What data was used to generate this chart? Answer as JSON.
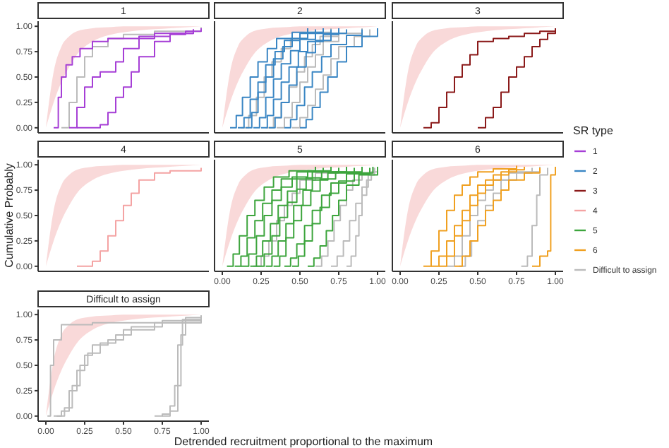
{
  "chart_data": [
    {
      "type": "step",
      "title": "1",
      "xlim": [
        -0.05,
        1.05
      ],
      "ylim": [
        -0.05,
        1.05
      ],
      "yticks": [
        {
          "value": 0,
          "label": "0.00"
        },
        {
          "value": 0.25,
          "label": "0.25"
        },
        {
          "value": 0.5,
          "label": "0.50"
        },
        {
          "value": 0.75,
          "label": "0.75"
        },
        {
          "value": 1,
          "label": "1.00"
        }
      ],
      "tick_labels": "y",
      "grid": false,
      "series": [
        {
          "type": "area",
          "color": "#f8d0d0",
          "x": [
            0,
            0.05,
            0.1,
            0.15,
            0.2,
            0.3,
            0.4,
            0.5,
            0.6,
            0.8,
            1.0
          ],
          "values": [
            null,
            null,
            null,
            null,
            null,
            null,
            null,
            null,
            null,
            null,
            null
          ],
          "lower": [
            0,
            0.25,
            0.45,
            0.6,
            0.72,
            0.85,
            0.91,
            0.94,
            0.96,
            0.98,
            1.0
          ],
          "upper": [
            0,
            0.55,
            0.8,
            0.9,
            0.95,
            0.98,
            0.99,
            1.0,
            1.0,
            1.0,
            1.0
          ]
        },
        {
          "color": "#bbbbbb",
          "x": [
            0.1,
            0.15,
            0.2,
            0.25,
            0.3,
            0.4,
            0.5,
            0.7,
            1.0
          ],
          "values": [
            0,
            0.25,
            0.5,
            0.7,
            0.8,
            0.88,
            0.92,
            0.95,
            0.99
          ]
        },
        {
          "name": "1",
          "color": "#a63fd6",
          "x": [
            0.05,
            0.08,
            0.1,
            0.13,
            0.17,
            0.22,
            0.3,
            0.4,
            0.6,
            0.8,
            0.95
          ],
          "values": [
            0,
            0.3,
            0.5,
            0.62,
            0.7,
            0.78,
            0.85,
            0.88,
            0.9,
            0.93,
            0.97
          ]
        },
        {
          "color": "#a63fd6",
          "x": [
            0.15,
            0.2,
            0.25,
            0.3,
            0.35,
            0.45,
            0.5,
            0.6,
            0.7,
            0.95
          ],
          "values": [
            0,
            0.2,
            0.4,
            0.5,
            0.55,
            0.65,
            0.78,
            0.88,
            0.93,
            0.97
          ]
        },
        {
          "color": "#a63fd6",
          "x": [
            0.2,
            0.35,
            0.4,
            0.45,
            0.5,
            0.55,
            0.6,
            0.7,
            0.8,
            0.9,
            1.0
          ],
          "values": [
            0,
            0.03,
            0.15,
            0.3,
            0.4,
            0.55,
            0.7,
            0.85,
            0.92,
            0.95,
            0.98
          ]
        }
      ]
    },
    {
      "type": "step",
      "title": "2",
      "xlim": [
        -0.05,
        1.05
      ],
      "ylim": [
        -0.05,
        1.05
      ],
      "tick_labels": false,
      "grid": false,
      "series": [
        {
          "type": "area",
          "color": "#f8d0d0",
          "x": [
            0,
            0.05,
            0.1,
            0.15,
            0.2,
            0.3,
            0.4,
            0.5,
            0.6,
            0.8,
            1.0
          ],
          "values": [
            null,
            null,
            null,
            null,
            null,
            null,
            null,
            null,
            null,
            null,
            null
          ],
          "lower": [
            0,
            0.25,
            0.45,
            0.6,
            0.72,
            0.85,
            0.91,
            0.94,
            0.96,
            0.98,
            1.0
          ],
          "upper": [
            0,
            0.55,
            0.8,
            0.9,
            0.95,
            0.98,
            0.99,
            1.0,
            1.0,
            1.0,
            1.0
          ]
        },
        {
          "color": "#bbbbbb",
          "x": [
            0.12,
            0.17,
            0.22,
            0.27,
            0.32,
            0.38,
            0.44,
            0.55,
            0.7
          ],
          "values": [
            0,
            0.12,
            0.3,
            0.5,
            0.65,
            0.78,
            0.88,
            0.94,
            0.98
          ]
        },
        {
          "color": "#bbbbbb",
          "x": [
            0.28,
            0.33,
            0.38,
            0.43,
            0.48,
            0.53,
            0.58,
            0.63,
            0.75
          ],
          "values": [
            0,
            0.1,
            0.25,
            0.4,
            0.55,
            0.7,
            0.82,
            0.9,
            0.96
          ]
        },
        {
          "color": "#bbbbbb",
          "x": [
            0.35,
            0.4,
            0.45,
            0.5,
            0.55,
            0.6,
            0.65,
            0.75,
            0.9
          ],
          "values": [
            0,
            0.1,
            0.25,
            0.45,
            0.6,
            0.72,
            0.85,
            0.93,
            0.98
          ]
        },
        {
          "color": "#bbbbbb",
          "x": [
            0.45,
            0.5,
            0.55,
            0.6,
            0.65,
            0.7,
            0.75,
            0.85,
            0.95
          ],
          "values": [
            0,
            0.1,
            0.22,
            0.38,
            0.52,
            0.68,
            0.8,
            0.9,
            0.97
          ]
        },
        {
          "name": "2",
          "color": "#3a86c4",
          "x": [
            0.05,
            0.09,
            0.13,
            0.18,
            0.23,
            0.29,
            0.35,
            0.45,
            0.55
          ],
          "values": [
            0,
            0.12,
            0.3,
            0.5,
            0.65,
            0.78,
            0.88,
            0.94,
            0.98
          ]
        },
        {
          "color": "#3a86c4",
          "x": [
            0.1,
            0.14,
            0.18,
            0.23,
            0.28,
            0.34,
            0.4,
            0.5,
            0.6
          ],
          "values": [
            0,
            0.1,
            0.28,
            0.45,
            0.62,
            0.75,
            0.86,
            0.93,
            0.97
          ]
        },
        {
          "color": "#3a86c4",
          "x": [
            0.15,
            0.19,
            0.23,
            0.28,
            0.33,
            0.39,
            0.45,
            0.55,
            0.65
          ],
          "values": [
            0,
            0.15,
            0.35,
            0.5,
            0.68,
            0.8,
            0.88,
            0.94,
            0.98
          ]
        },
        {
          "color": "#3a86c4",
          "x": [
            0.2,
            0.24,
            0.28,
            0.33,
            0.38,
            0.44,
            0.5,
            0.6,
            0.7
          ],
          "values": [
            0,
            0.1,
            0.3,
            0.48,
            0.63,
            0.76,
            0.87,
            0.93,
            0.97
          ]
        },
        {
          "color": "#3a86c4",
          "x": [
            0.25,
            0.29,
            0.33,
            0.38,
            0.43,
            0.49,
            0.55,
            0.65,
            0.75
          ],
          "values": [
            0,
            0.12,
            0.28,
            0.45,
            0.6,
            0.75,
            0.85,
            0.92,
            0.98
          ]
        },
        {
          "color": "#3a86c4",
          "x": [
            0.3,
            0.34,
            0.38,
            0.43,
            0.48,
            0.54,
            0.6,
            0.7,
            0.8
          ],
          "values": [
            0,
            0.1,
            0.25,
            0.42,
            0.6,
            0.74,
            0.86,
            0.93,
            0.97
          ]
        },
        {
          "color": "#3a86c4",
          "x": [
            0.4,
            0.44,
            0.48,
            0.53,
            0.58,
            0.64,
            0.7,
            0.8,
            0.9
          ],
          "values": [
            0,
            0.08,
            0.22,
            0.4,
            0.55,
            0.7,
            0.82,
            0.91,
            0.97
          ]
        },
        {
          "color": "#3a86c4",
          "x": [
            0.5,
            0.54,
            0.58,
            0.63,
            0.68,
            0.74,
            0.8,
            0.9,
            1.0
          ],
          "values": [
            0,
            0.08,
            0.2,
            0.35,
            0.5,
            0.65,
            0.8,
            0.9,
            0.98
          ]
        }
      ]
    },
    {
      "type": "step",
      "title": "3",
      "xlim": [
        -0.05,
        1.05
      ],
      "ylim": [
        -0.05,
        1.05
      ],
      "tick_labels": false,
      "grid": false,
      "legend": "right",
      "legend_title": "SR type",
      "series": [
        {
          "type": "area",
          "color": "#f8d0d0",
          "x": [
            0,
            0.05,
            0.1,
            0.15,
            0.2,
            0.3,
            0.4,
            0.5,
            0.6,
            0.8,
            1.0
          ],
          "values": [
            null,
            null,
            null,
            null,
            null,
            null,
            null,
            null,
            null,
            null,
            null
          ],
          "lower": [
            0,
            0.25,
            0.45,
            0.6,
            0.72,
            0.85,
            0.91,
            0.94,
            0.96,
            0.98,
            1.0
          ],
          "upper": [
            0,
            0.55,
            0.8,
            0.9,
            0.95,
            0.98,
            0.99,
            1.0,
            1.0,
            1.0,
            1.0
          ]
        },
        {
          "name": "3",
          "color": "#8b1a1a",
          "x": [
            0.15,
            0.2,
            0.25,
            0.3,
            0.35,
            0.4,
            0.45,
            0.5,
            0.6,
            0.7,
            0.8,
            0.9,
            1.0
          ],
          "values": [
            0,
            0.05,
            0.2,
            0.35,
            0.5,
            0.62,
            0.72,
            0.85,
            0.88,
            0.9,
            0.93,
            0.95,
            0.98
          ]
        },
        {
          "color": "#8b1a1a",
          "x": [
            0.5,
            0.55,
            0.6,
            0.65,
            0.7,
            0.75,
            0.8,
            0.85,
            0.9,
            0.95,
            1.0
          ],
          "values": [
            0,
            0.1,
            0.2,
            0.35,
            0.5,
            0.6,
            0.7,
            0.8,
            0.87,
            0.93,
            0.98
          ]
        }
      ]
    },
    {
      "type": "step",
      "title": "4",
      "ylabel": "Cumulative Probably",
      "xlim": [
        -0.05,
        1.05
      ],
      "ylim": [
        -0.05,
        1.05
      ],
      "yticks": [
        {
          "value": 0,
          "label": "0.00"
        },
        {
          "value": 0.25,
          "label": "0.25"
        },
        {
          "value": 0.5,
          "label": "0.50"
        },
        {
          "value": 0.75,
          "label": "0.75"
        },
        {
          "value": 1,
          "label": "1.00"
        }
      ],
      "tick_labels": "y",
      "grid": false,
      "series": [
        {
          "type": "area",
          "color": "#f8d0d0",
          "x": [
            0,
            0.05,
            0.1,
            0.15,
            0.2,
            0.3,
            0.4,
            0.5,
            0.6,
            0.8,
            1.0
          ],
          "values": [
            null,
            null,
            null,
            null,
            null,
            null,
            null,
            null,
            null,
            null,
            null
          ],
          "lower": [
            0,
            0.25,
            0.45,
            0.6,
            0.72,
            0.85,
            0.91,
            0.94,
            0.96,
            0.98,
            1.0
          ],
          "upper": [
            0,
            0.55,
            0.8,
            0.9,
            0.95,
            0.98,
            0.99,
            1.0,
            1.0,
            1.0,
            1.0
          ]
        },
        {
          "name": "4",
          "color": "#f4a3a3",
          "x": [
            0.2,
            0.3,
            0.35,
            0.4,
            0.45,
            0.5,
            0.55,
            0.6,
            0.7,
            0.8,
            1.0
          ],
          "values": [
            0,
            0.05,
            0.15,
            0.3,
            0.45,
            0.6,
            0.72,
            0.85,
            0.92,
            0.94,
            0.97
          ]
        }
      ]
    },
    {
      "type": "step",
      "title": "5",
      "xlim": [
        -0.05,
        1.05
      ],
      "ylim": [
        -0.05,
        1.05
      ],
      "xticks": [
        {
          "value": 0,
          "label": "0.00"
        },
        {
          "value": 0.25,
          "label": "0.25"
        },
        {
          "value": 0.5,
          "label": "0.50"
        },
        {
          "value": 0.75,
          "label": "0.75"
        },
        {
          "value": 1,
          "label": "1.00"
        }
      ],
      "tick_labels": "x",
      "grid": false,
      "series": [
        {
          "type": "area",
          "color": "#f8d0d0",
          "x": [
            0,
            0.05,
            0.1,
            0.15,
            0.2,
            0.3,
            0.4,
            0.5,
            0.6,
            0.8,
            1.0
          ],
          "values": [
            null,
            null,
            null,
            null,
            null,
            null,
            null,
            null,
            null,
            null,
            null
          ],
          "lower": [
            0,
            0.25,
            0.45,
            0.6,
            0.72,
            0.85,
            0.91,
            0.94,
            0.96,
            0.98,
            1.0
          ],
          "upper": [
            0,
            0.55,
            0.8,
            0.9,
            0.95,
            0.98,
            0.99,
            1.0,
            1.0,
            1.0,
            1.0
          ]
        },
        {
          "color": "#bbbbbb",
          "x": [
            0.2,
            0.25,
            0.3,
            0.35,
            0.4,
            0.45,
            0.5,
            0.6,
            0.75
          ],
          "values": [
            0,
            0.1,
            0.25,
            0.45,
            0.6,
            0.72,
            0.85,
            0.92,
            0.97
          ]
        },
        {
          "color": "#bbbbbb",
          "x": [
            0.6,
            0.64,
            0.68,
            0.72,
            0.76,
            0.8,
            0.84,
            0.9,
            0.98
          ],
          "values": [
            0,
            0.1,
            0.25,
            0.45,
            0.6,
            0.75,
            0.85,
            0.92,
            0.97
          ]
        },
        {
          "color": "#bbbbbb",
          "x": [
            0.7,
            0.74,
            0.78,
            0.82,
            0.86,
            0.9,
            0.94,
            0.98
          ],
          "values": [
            0,
            0.1,
            0.25,
            0.45,
            0.62,
            0.78,
            0.9,
            0.97
          ]
        },
        {
          "color": "#bbbbbb",
          "x": [
            0.8,
            0.83,
            0.86,
            0.88,
            0.9,
            0.93,
            0.96,
            1.0
          ],
          "values": [
            0,
            0.1,
            0.3,
            0.5,
            0.7,
            0.85,
            0.93,
            0.98
          ]
        },
        {
          "name": "5",
          "color": "#3da53d",
          "x": [
            0.03,
            0.07,
            0.11,
            0.16,
            0.21,
            0.27,
            0.33,
            0.43,
            0.6
          ],
          "values": [
            0,
            0.12,
            0.3,
            0.5,
            0.65,
            0.78,
            0.88,
            0.94,
            0.98
          ]
        },
        {
          "color": "#3da53d",
          "x": [
            0.08,
            0.12,
            0.16,
            0.21,
            0.26,
            0.32,
            0.38,
            0.48,
            0.65
          ],
          "values": [
            0,
            0.1,
            0.28,
            0.45,
            0.62,
            0.75,
            0.86,
            0.93,
            0.97
          ]
        },
        {
          "color": "#3da53d",
          "x": [
            0.12,
            0.17,
            0.22,
            0.27,
            0.32,
            0.38,
            0.45,
            0.55,
            0.7
          ],
          "values": [
            0,
            0.12,
            0.3,
            0.5,
            0.65,
            0.78,
            0.88,
            0.94,
            0.98
          ]
        },
        {
          "color": "#3da53d",
          "x": [
            0.18,
            0.22,
            0.26,
            0.31,
            0.36,
            0.42,
            0.48,
            0.58,
            0.75
          ],
          "values": [
            0,
            0.1,
            0.25,
            0.42,
            0.6,
            0.74,
            0.86,
            0.93,
            0.97
          ]
        },
        {
          "color": "#3da53d",
          "x": [
            0.22,
            0.27,
            0.32,
            0.37,
            0.42,
            0.48,
            0.54,
            0.64,
            0.8
          ],
          "values": [
            0,
            0.12,
            0.3,
            0.48,
            0.63,
            0.76,
            0.87,
            0.93,
            0.98
          ]
        },
        {
          "color": "#3da53d",
          "x": [
            0.28,
            0.32,
            0.36,
            0.41,
            0.46,
            0.52,
            0.58,
            0.68,
            0.85
          ],
          "values": [
            0,
            0.1,
            0.25,
            0.42,
            0.6,
            0.75,
            0.85,
            0.92,
            0.97
          ]
        },
        {
          "color": "#3da53d",
          "x": [
            0.33,
            0.37,
            0.41,
            0.46,
            0.51,
            0.57,
            0.63,
            0.73,
            0.9
          ],
          "values": [
            0,
            0.1,
            0.28,
            0.45,
            0.6,
            0.74,
            0.86,
            0.93,
            0.98
          ]
        },
        {
          "color": "#3da53d",
          "x": [
            0.4,
            0.44,
            0.48,
            0.53,
            0.58,
            0.64,
            0.7,
            0.8,
            0.95
          ],
          "values": [
            0,
            0.08,
            0.22,
            0.4,
            0.55,
            0.7,
            0.82,
            0.91,
            0.97
          ]
        },
        {
          "color": "#3da53d",
          "x": [
            0.45,
            0.49,
            0.53,
            0.58,
            0.63,
            0.69,
            0.75,
            0.85,
            0.97
          ],
          "values": [
            0,
            0.1,
            0.25,
            0.42,
            0.58,
            0.72,
            0.84,
            0.92,
            0.98
          ]
        },
        {
          "color": "#3da53d",
          "x": [
            0.55,
            0.59,
            0.63,
            0.67,
            0.71,
            0.75,
            0.8,
            0.88,
            1.0
          ],
          "values": [
            0,
            0.08,
            0.2,
            0.35,
            0.5,
            0.65,
            0.8,
            0.9,
            0.98
          ]
        }
      ]
    },
    {
      "type": "step",
      "title": "6",
      "xlim": [
        -0.05,
        1.05
      ],
      "ylim": [
        -0.05,
        1.05
      ],
      "xticks": [
        {
          "value": 0,
          "label": "0.00"
        },
        {
          "value": 0.25,
          "label": "0.25"
        },
        {
          "value": 0.5,
          "label": "0.50"
        },
        {
          "value": 0.75,
          "label": "0.75"
        },
        {
          "value": 1,
          "label": "1.00"
        }
      ],
      "tick_labels": "x",
      "grid": false,
      "series": [
        {
          "type": "area",
          "color": "#f8d0d0",
          "x": [
            0,
            0.05,
            0.1,
            0.15,
            0.2,
            0.3,
            0.4,
            0.5,
            0.6,
            0.8,
            1.0
          ],
          "values": [
            null,
            null,
            null,
            null,
            null,
            null,
            null,
            null,
            null,
            null,
            null
          ],
          "lower": [
            0,
            0.25,
            0.45,
            0.6,
            0.72,
            0.85,
            0.91,
            0.94,
            0.96,
            0.98,
            1.0
          ],
          "upper": [
            0,
            0.55,
            0.8,
            0.9,
            0.95,
            0.98,
            0.99,
            1.0,
            1.0,
            1.0,
            1.0
          ]
        },
        {
          "color": "#bbbbbb",
          "x": [
            0.3,
            0.35,
            0.4,
            0.45,
            0.5,
            0.55,
            0.6,
            0.7,
            0.85
          ],
          "values": [
            0,
            0.1,
            0.3,
            0.5,
            0.65,
            0.75,
            0.85,
            0.92,
            0.97
          ]
        },
        {
          "color": "#bbbbbb",
          "x": [
            0.38,
            0.42,
            0.46,
            0.5,
            0.55,
            0.6,
            0.65,
            0.75,
            0.9
          ],
          "values": [
            0,
            0.1,
            0.25,
            0.45,
            0.6,
            0.72,
            0.85,
            0.93,
            0.98
          ]
        },
        {
          "color": "#bbbbbb",
          "x": [
            0.78,
            0.82,
            0.85,
            0.88,
            0.9,
            0.95
          ],
          "values": [
            0,
            0.1,
            0.4,
            0.7,
            0.9,
            0.97
          ]
        },
        {
          "name": "6",
          "color": "#f0a020",
          "x": [
            0.15,
            0.2,
            0.25,
            0.3,
            0.35,
            0.4,
            0.45,
            0.5,
            0.6,
            0.75
          ],
          "values": [
            0,
            0.15,
            0.35,
            0.55,
            0.7,
            0.8,
            0.88,
            0.93,
            0.96,
            0.99
          ]
        },
        {
          "color": "#f0a020",
          "x": [
            0.2,
            0.25,
            0.3,
            0.35,
            0.4,
            0.45,
            0.5,
            0.6,
            0.7,
            0.8
          ],
          "values": [
            0,
            0.1,
            0.25,
            0.4,
            0.55,
            0.7,
            0.8,
            0.9,
            0.95,
            0.98
          ]
        },
        {
          "color": "#f0a020",
          "x": [
            0.25,
            0.3,
            0.35,
            0.4,
            0.45,
            0.5,
            0.55,
            0.65,
            0.75
          ],
          "values": [
            0,
            0.1,
            0.3,
            0.45,
            0.6,
            0.72,
            0.85,
            0.93,
            0.97
          ]
        },
        {
          "color": "#f0a020",
          "x": [
            0.35,
            0.4,
            0.45,
            0.5,
            0.55,
            0.6,
            0.65,
            0.7,
            0.8,
            0.9
          ],
          "values": [
            0,
            0.1,
            0.25,
            0.4,
            0.55,
            0.65,
            0.75,
            0.85,
            0.92,
            0.97
          ]
        },
        {
          "color": "#f0a020",
          "x": [
            0.85,
            0.9,
            0.95,
            0.97,
            1.0
          ],
          "values": [
            0,
            0.1,
            0.15,
            0.9,
            0.98
          ]
        }
      ]
    },
    {
      "type": "step",
      "title": "Difficult to assign",
      "xlabel": "Detrended recruitment proportional to the maximum",
      "xlim": [
        -0.05,
        1.05
      ],
      "ylim": [
        -0.05,
        1.05
      ],
      "xticks": [
        {
          "value": 0,
          "label": "0.00"
        },
        {
          "value": 0.25,
          "label": "0.25"
        },
        {
          "value": 0.5,
          "label": "0.50"
        },
        {
          "value": 0.75,
          "label": "0.75"
        },
        {
          "value": 1,
          "label": "1.00"
        }
      ],
      "yticks": [
        {
          "value": 0,
          "label": "0.00"
        },
        {
          "value": 0.25,
          "label": "0.25"
        },
        {
          "value": 0.5,
          "label": "0.50"
        },
        {
          "value": 0.75,
          "label": "0.75"
        },
        {
          "value": 1,
          "label": "1.00"
        }
      ],
      "grid": false,
      "series": [
        {
          "type": "area",
          "color": "#f8d0d0",
          "x": [
            0,
            0.05,
            0.1,
            0.15,
            0.2,
            0.3,
            0.4,
            0.5,
            0.6,
            0.8,
            1.0
          ],
          "values": [
            null,
            null,
            null,
            null,
            null,
            null,
            null,
            null,
            null,
            null,
            null
          ],
          "lower": [
            0,
            0.25,
            0.45,
            0.6,
            0.72,
            0.85,
            0.91,
            0.94,
            0.96,
            0.98,
            1.0
          ],
          "upper": [
            0,
            0.55,
            0.8,
            0.9,
            0.95,
            0.98,
            0.99,
            1.0,
            1.0,
            1.0,
            1.0
          ]
        },
        {
          "name": "Difficult to assign",
          "color": "#bbbbbb",
          "x": [
            0.01,
            0.03,
            0.05,
            0.1,
            0.15,
            0.3,
            1.0
          ],
          "values": [
            0,
            0.5,
            0.75,
            0.9,
            0.9,
            0.92,
            0.98
          ]
        },
        {
          "color": "#bbbbbb",
          "x": [
            0.05,
            0.1,
            0.15,
            0.2,
            0.25,
            0.3,
            0.4,
            0.5,
            0.7,
            1.0
          ],
          "values": [
            0,
            0.05,
            0.25,
            0.45,
            0.6,
            0.7,
            0.75,
            0.85,
            0.92,
            0.98
          ]
        },
        {
          "color": "#bbbbbb",
          "x": [
            0.07,
            0.12,
            0.17,
            0.22,
            0.27,
            0.35,
            0.45,
            0.55,
            0.75,
            1.0
          ],
          "values": [
            0,
            0.08,
            0.3,
            0.5,
            0.62,
            0.72,
            0.8,
            0.88,
            0.94,
            0.99
          ]
        },
        {
          "color": "#bbbbbb",
          "x": [
            0.7,
            0.75,
            0.8,
            0.83,
            0.85,
            0.88,
            0.9,
            1.0
          ],
          "values": [
            0,
            0.02,
            0.1,
            0.3,
            0.7,
            0.95,
            0.97,
            0.99
          ]
        },
        {
          "color": "#bbbbbb",
          "x": [
            0.75,
            0.8,
            0.85,
            0.87,
            0.9,
            1.0
          ],
          "values": [
            0,
            0.05,
            0.3,
            0.8,
            0.95,
            0.99
          ]
        }
      ]
    }
  ]
}
